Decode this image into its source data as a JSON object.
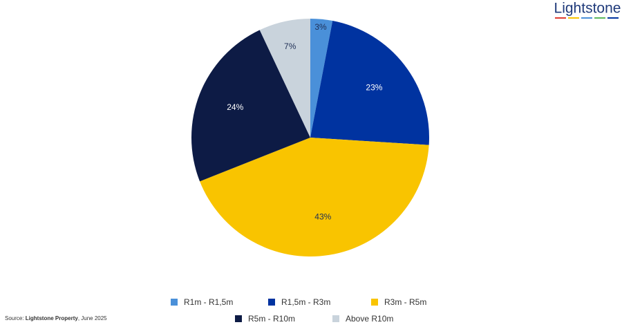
{
  "chart_data": {
    "type": "pie",
    "categories": [
      "R1m - R1,5m",
      "R1,5m - R3m",
      "R3m - R5m",
      "R5m - R10m",
      "Above R10m"
    ],
    "values": [
      3,
      23,
      43,
      24,
      7
    ],
    "value_labels": [
      "3%",
      "23%",
      "43%",
      "24%",
      "7%"
    ],
    "colors": [
      "#4a90d9",
      "#0033a0",
      "#f9c400",
      "#0d1b45",
      "#c9d3dc"
    ],
    "label_colors": [
      "#1f2f55",
      "#ffffff",
      "#1f2f55",
      "#ffffff",
      "#1f2f55"
    ]
  },
  "logo": "Lightstone",
  "source": {
    "prefix": "Source: ",
    "emphasis": "Lightstone Property",
    "suffix": ", June 2025"
  }
}
